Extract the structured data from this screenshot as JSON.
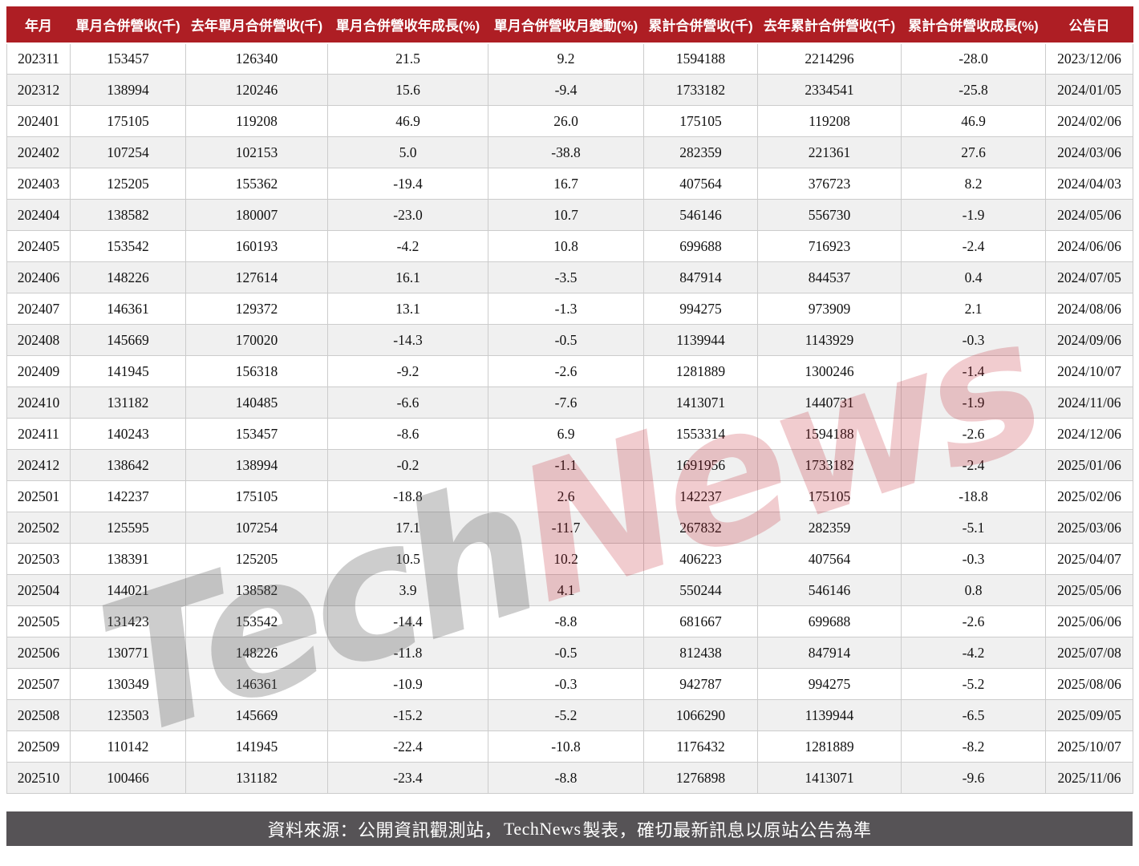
{
  "chart_data": {
    "type": "table",
    "columns": [
      "年月",
      "單月合併營收(千)",
      "去年單月合併營收(千)",
      "單月合併營收年成長(%)",
      "單月合併營收月變動(%)",
      "累計合併營收(千)",
      "去年累計合併營收(千)",
      "累計合併營收成長(%)",
      "公告日"
    ],
    "rows": [
      [
        "202311",
        "153457",
        "126340",
        "21.5",
        "9.2",
        "1594188",
        "2214296",
        "-28.0",
        "2023/12/06"
      ],
      [
        "202312",
        "138994",
        "120246",
        "15.6",
        "-9.4",
        "1733182",
        "2334541",
        "-25.8",
        "2024/01/05"
      ],
      [
        "202401",
        "175105",
        "119208",
        "46.9",
        "26.0",
        "175105",
        "119208",
        "46.9",
        "2024/02/06"
      ],
      [
        "202402",
        "107254",
        "102153",
        "5.0",
        "-38.8",
        "282359",
        "221361",
        "27.6",
        "2024/03/06"
      ],
      [
        "202403",
        "125205",
        "155362",
        "-19.4",
        "16.7",
        "407564",
        "376723",
        "8.2",
        "2024/04/03"
      ],
      [
        "202404",
        "138582",
        "180007",
        "-23.0",
        "10.7",
        "546146",
        "556730",
        "-1.9",
        "2024/05/06"
      ],
      [
        "202405",
        "153542",
        "160193",
        "-4.2",
        "10.8",
        "699688",
        "716923",
        "-2.4",
        "2024/06/06"
      ],
      [
        "202406",
        "148226",
        "127614",
        "16.1",
        "-3.5",
        "847914",
        "844537",
        "0.4",
        "2024/07/05"
      ],
      [
        "202407",
        "146361",
        "129372",
        "13.1",
        "-1.3",
        "994275",
        "973909",
        "2.1",
        "2024/08/06"
      ],
      [
        "202408",
        "145669",
        "170020",
        "-14.3",
        "-0.5",
        "1139944",
        "1143929",
        "-0.3",
        "2024/09/06"
      ],
      [
        "202409",
        "141945",
        "156318",
        "-9.2",
        "-2.6",
        "1281889",
        "1300246",
        "-1.4",
        "2024/10/07"
      ],
      [
        "202410",
        "131182",
        "140485",
        "-6.6",
        "-7.6",
        "1413071",
        "1440731",
        "-1.9",
        "2024/11/06"
      ],
      [
        "202411",
        "140243",
        "153457",
        "-8.6",
        "6.9",
        "1553314",
        "1594188",
        "-2.6",
        "2024/12/06"
      ],
      [
        "202412",
        "138642",
        "138994",
        "-0.2",
        "-1.1",
        "1691956",
        "1733182",
        "-2.4",
        "2025/01/06"
      ],
      [
        "202501",
        "142237",
        "175105",
        "-18.8",
        "2.6",
        "142237",
        "175105",
        "-18.8",
        "2025/02/06"
      ],
      [
        "202502",
        "125595",
        "107254",
        "17.1",
        "-11.7",
        "267832",
        "282359",
        "-5.1",
        "2025/03/06"
      ],
      [
        "202503",
        "138391",
        "125205",
        "10.5",
        "10.2",
        "406223",
        "407564",
        "-0.3",
        "2025/04/07"
      ],
      [
        "202504",
        "144021",
        "138582",
        "3.9",
        "4.1",
        "550244",
        "546146",
        "0.8",
        "2025/05/06"
      ],
      [
        "202505",
        "131423",
        "153542",
        "-14.4",
        "-8.8",
        "681667",
        "699688",
        "-2.6",
        "2025/06/06"
      ],
      [
        "202506",
        "130771",
        "148226",
        "-11.8",
        "-0.5",
        "812438",
        "847914",
        "-4.2",
        "2025/07/08"
      ],
      [
        "202507",
        "130349",
        "146361",
        "-10.9",
        "-0.3",
        "942787",
        "994275",
        "-5.2",
        "2025/08/06"
      ],
      [
        "202508",
        "123503",
        "145669",
        "-15.2",
        "-5.2",
        "1066290",
        "1139944",
        "-6.5",
        "2025/09/05"
      ],
      [
        "202509",
        "110142",
        "141945",
        "-22.4",
        "-10.8",
        "1176432",
        "1281889",
        "-8.2",
        "2025/10/07"
      ],
      [
        "202510",
        "100466",
        "131182",
        "-23.4",
        "-8.8",
        "1276898",
        "1413071",
        "-9.6",
        "2025/11/06"
      ]
    ],
    "title": "",
    "legend_position": "none",
    "grid": true
  },
  "watermark": {
    "part1": "Tech",
    "part2": "News"
  },
  "footer": {
    "prefix": "資料來源：公開資訊觀測站，",
    "brand": "TechNews",
    "suffix": " 製表，確切最新訊息以原站公告為準"
  },
  "colors": {
    "header_bg": "#AE1E24",
    "footer_bg": "#565356",
    "row_stripe": "#F0F0F0",
    "cell_border": "#CCCCCC",
    "watermark_gray": "rgba(90,90,90,0.30)",
    "watermark_red": "rgba(190,25,35,0.22)"
  }
}
